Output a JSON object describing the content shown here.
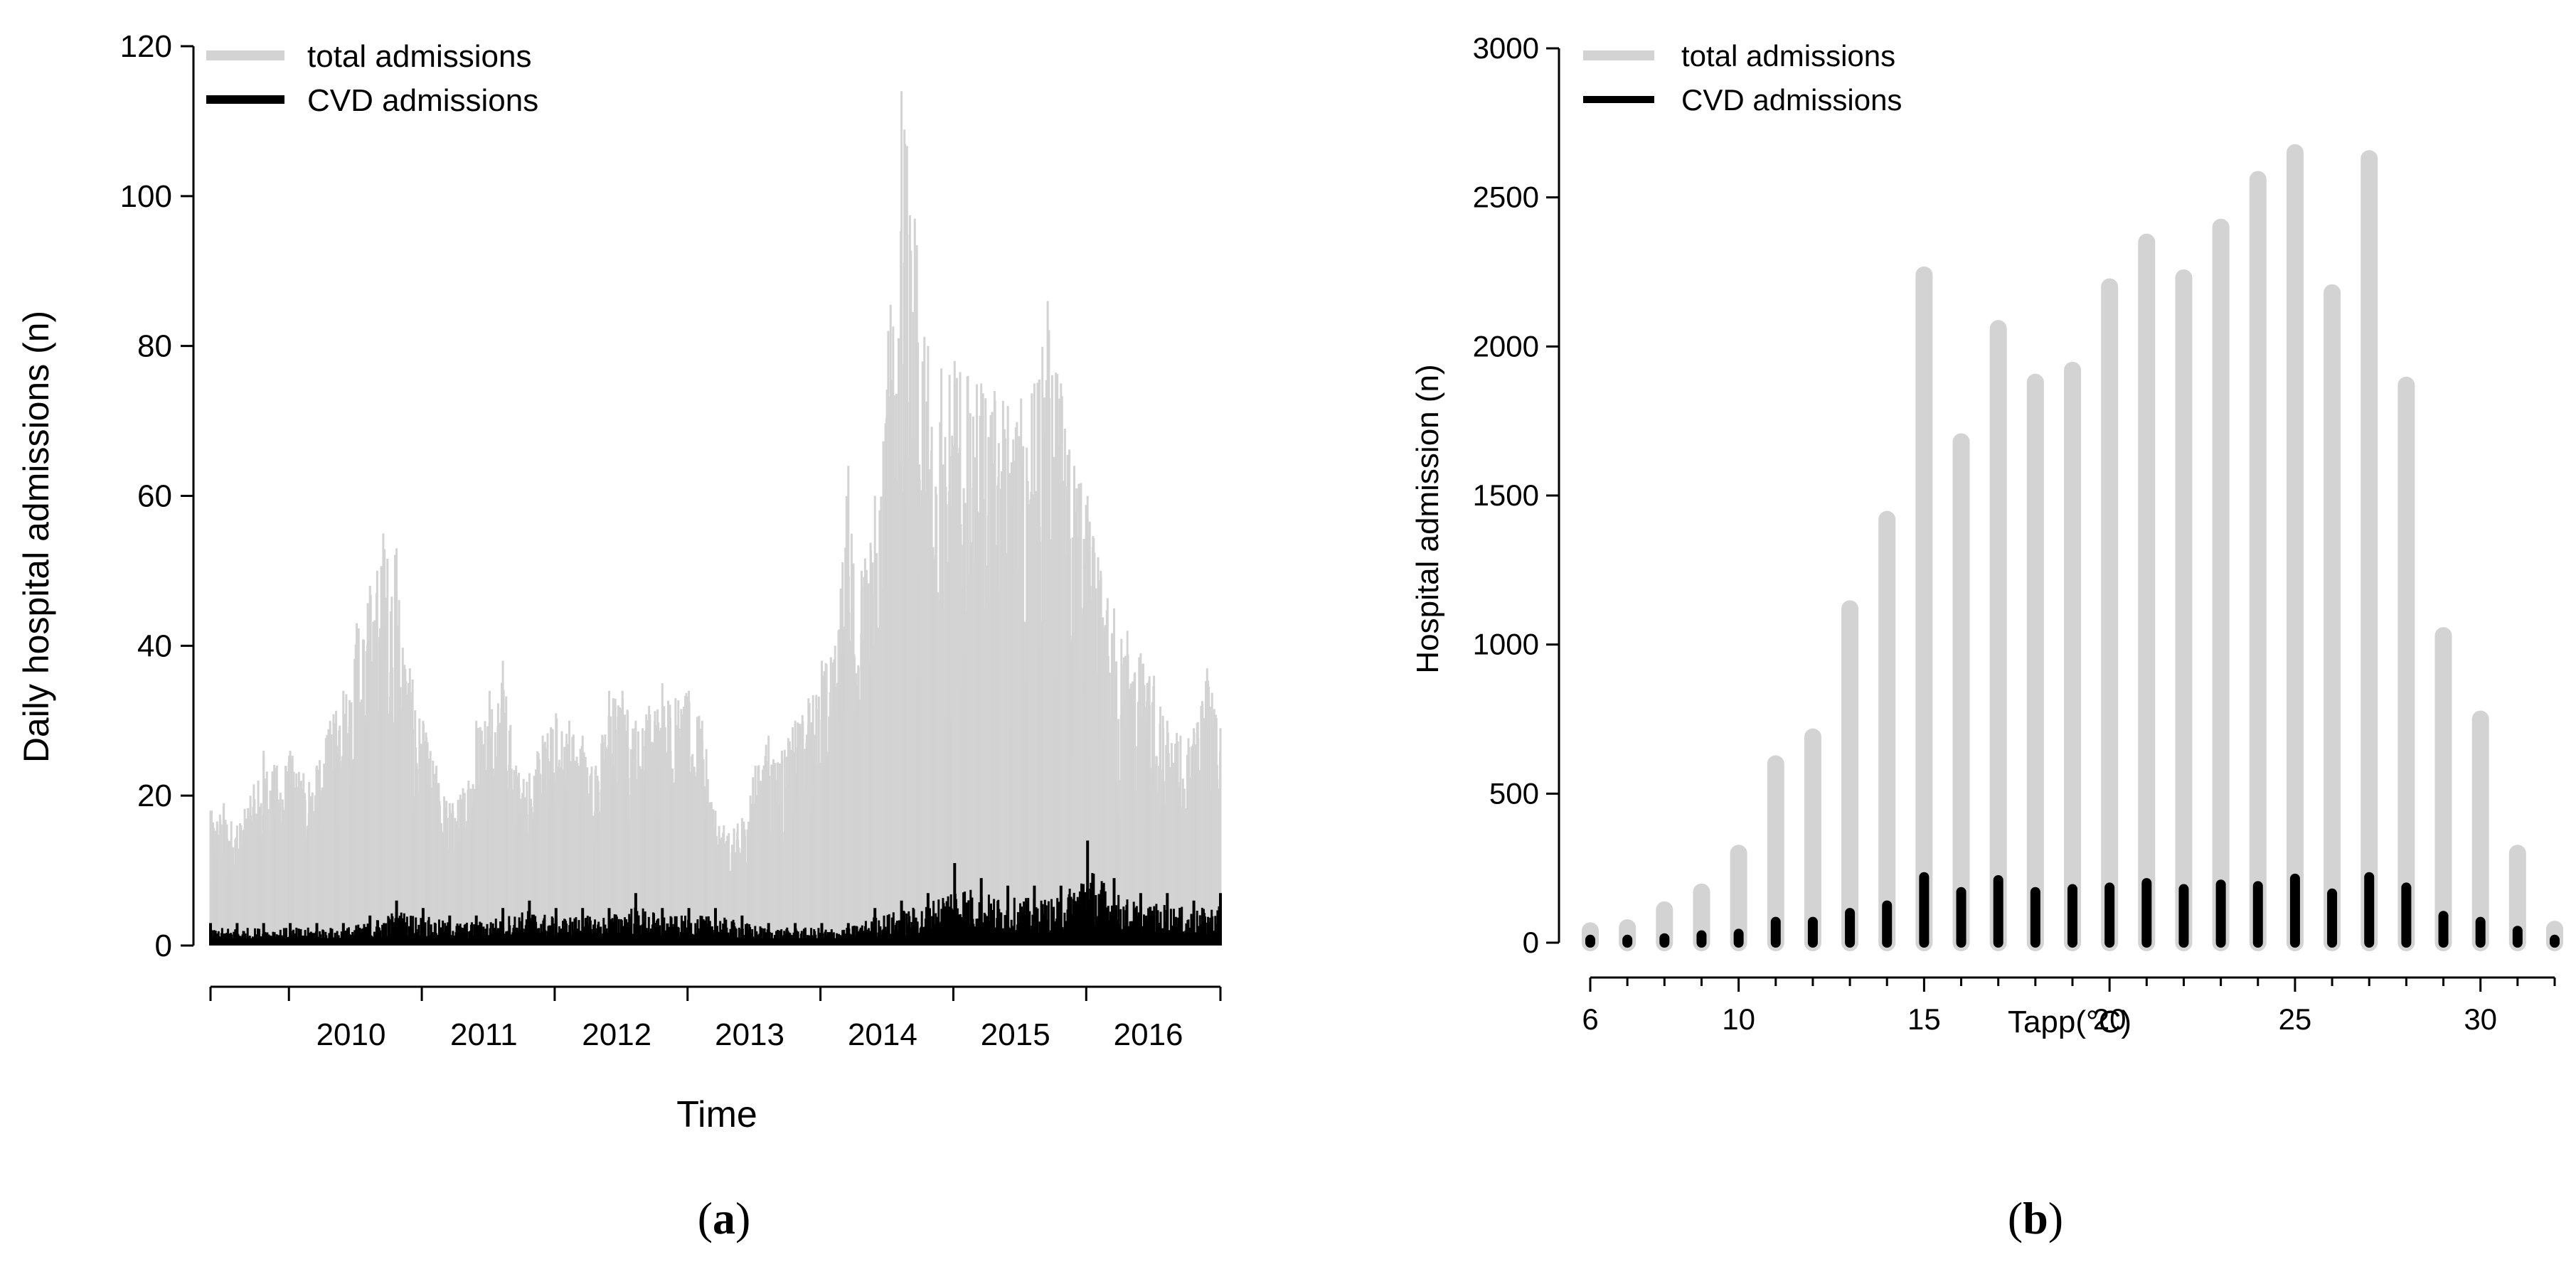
{
  "chart_data": [
    {
      "panel": "(a)",
      "panel_letter": "a",
      "type": "line",
      "title": "",
      "xlabel": "Time",
      "ylabel": "Daily hospital admissions (n)",
      "xlim": [
        2009.4,
        2017.0
      ],
      "ylim": [
        0,
        120
      ],
      "yticks": [
        0,
        20,
        40,
        60,
        80,
        100,
        120
      ],
      "xtick_labels": [
        "2010",
        "2011",
        "2012",
        "2013",
        "2014",
        "2015",
        "2016"
      ],
      "grid": false,
      "legend": {
        "position": "top-left",
        "entries": [
          "total admissions",
          "CVD admissions"
        ]
      },
      "colors": {
        "total": "#d3d3d3",
        "cvd": "#000000"
      },
      "series": [
        {
          "name": "total admissions",
          "x": [
            2009.4,
            2009.5,
            2009.6,
            2009.7,
            2009.8,
            2009.9,
            2010.0,
            2010.1,
            2010.2,
            2010.3,
            2010.4,
            2010.5,
            2010.6,
            2010.7,
            2010.8,
            2010.9,
            2011.0,
            2011.1,
            2011.2,
            2011.3,
            2011.4,
            2011.5,
            2011.6,
            2011.7,
            2011.8,
            2011.9,
            2012.0,
            2012.1,
            2012.2,
            2012.3,
            2012.4,
            2012.5,
            2012.6,
            2012.7,
            2012.8,
            2012.9,
            2013.0,
            2013.1,
            2013.2,
            2013.3,
            2013.4,
            2013.5,
            2013.6,
            2013.7,
            2013.8,
            2013.9,
            2014.0,
            2014.1,
            2014.2,
            2014.3,
            2014.4,
            2014.5,
            2014.6,
            2014.7,
            2014.8,
            2014.9,
            2015.0,
            2015.1,
            2015.2,
            2015.3,
            2015.4,
            2015.5,
            2015.6,
            2015.7,
            2015.8,
            2015.9,
            2016.0,
            2016.1,
            2016.2,
            2016.3,
            2016.4,
            2016.5,
            2016.6,
            2016.7,
            2016.8,
            2016.9,
            2017.0
          ],
          "values": [
            18,
            19,
            16,
            20,
            26,
            24,
            26,
            23,
            24,
            30,
            34,
            43,
            48,
            55,
            53,
            37,
            30,
            24,
            19,
            21,
            30,
            34,
            38,
            24,
            23,
            28,
            31,
            30,
            28,
            24,
            34,
            34,
            30,
            32,
            35,
            33,
            34,
            30,
            18,
            15,
            17,
            24,
            28,
            26,
            30,
            33,
            38,
            40,
            64,
            50,
            60,
            82,
            114,
            97,
            80,
            77,
            78,
            76,
            75,
            74,
            72,
            73,
            75,
            86,
            75,
            64,
            60,
            50,
            45,
            42,
            39,
            36,
            30,
            28,
            29,
            37,
            29
          ],
          "baseline": [
            3,
            4,
            5,
            5,
            5,
            6,
            6,
            7,
            6,
            7,
            7,
            8,
            8,
            9,
            8,
            7,
            7,
            6,
            6,
            6,
            7,
            7,
            8,
            7,
            7,
            7,
            8,
            8,
            7,
            7,
            8,
            8,
            8,
            8,
            8,
            8,
            8,
            6,
            4,
            4,
            4,
            5,
            6,
            6,
            7,
            7,
            8,
            9,
            10,
            10,
            8,
            6,
            4,
            3,
            2,
            2,
            2,
            2,
            2,
            2,
            2,
            2,
            2,
            2,
            2,
            2,
            2,
            2,
            2,
            2,
            2,
            2,
            2,
            2,
            2,
            2,
            2
          ]
        },
        {
          "name": "CVD admissions",
          "x": [
            2009.4,
            2009.6,
            2009.8,
            2010.0,
            2010.2,
            2010.4,
            2010.6,
            2010.8,
            2011.0,
            2011.2,
            2011.4,
            2011.6,
            2011.8,
            2012.0,
            2012.2,
            2012.4,
            2012.6,
            2012.8,
            2013.0,
            2013.2,
            2013.4,
            2013.6,
            2013.8,
            2014.0,
            2014.2,
            2014.4,
            2014.6,
            2014.8,
            2015.0,
            2015.2,
            2015.4,
            2015.6,
            2015.8,
            2016.0,
            2016.2,
            2016.4,
            2016.6,
            2016.8,
            2017.0
          ],
          "values": [
            3,
            3,
            3,
            3,
            3,
            3,
            4,
            6,
            5,
            4,
            4,
            5,
            6,
            5,
            5,
            5,
            7,
            5,
            5,
            5,
            4,
            3,
            3,
            3,
            3,
            5,
            6,
            7,
            11,
            9,
            8,
            8,
            8,
            14,
            9,
            7,
            7,
            6,
            7
          ]
        }
      ]
    },
    {
      "panel": "(b)",
      "panel_letter": "b",
      "type": "bar",
      "title": "",
      "xlabel": "Tapp(°C)",
      "ylabel": "Hospital admission (n)",
      "xlim": [
        6,
        32
      ],
      "ylim": [
        0,
        3000
      ],
      "yticks": [
        0,
        500,
        1000,
        1500,
        2000,
        2500,
        3000
      ],
      "xticks": [
        6,
        10,
        15,
        20,
        25,
        30
      ],
      "grid": false,
      "legend": {
        "position": "top-left",
        "entries": [
          "total admissions",
          "CVD admissions"
        ]
      },
      "colors": {
        "total": "#d3d3d3",
        "cvd": "#000000"
      },
      "categories": [
        6,
        7,
        8,
        9,
        10,
        11,
        12,
        13,
        14,
        15,
        16,
        17,
        18,
        19,
        20,
        21,
        22,
        23,
        24,
        25,
        26,
        27,
        28,
        29,
        30,
        31,
        32
      ],
      "series": [
        {
          "name": "total admissions",
          "values": [
            40,
            50,
            110,
            170,
            300,
            600,
            690,
            1120,
            1420,
            2240,
            1680,
            2060,
            1880,
            1920,
            2200,
            2350,
            2230,
            2400,
            2560,
            2650,
            2180,
            2630,
            1870,
            1030,
            750,
            300,
            45
          ]
        },
        {
          "name": "CVD admissions",
          "values": [
            10,
            10,
            15,
            25,
            30,
            70,
            70,
            100,
            125,
            220,
            170,
            210,
            170,
            180,
            185,
            200,
            180,
            195,
            190,
            215,
            165,
            220,
            185,
            90,
            70,
            40,
            10
          ]
        }
      ]
    }
  ]
}
